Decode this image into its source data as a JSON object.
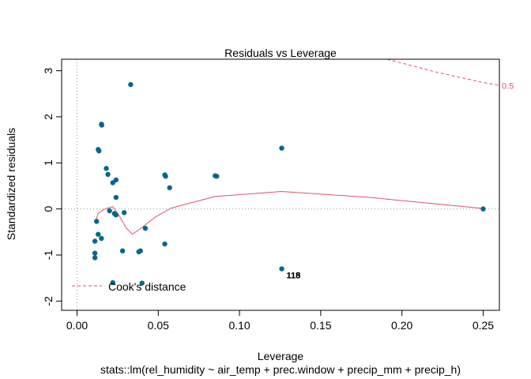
{
  "chart_data": {
    "type": "scatter",
    "title": "Residuals vs Leverage",
    "xlabel": "Leverage",
    "ylabel": "Standardized residuals",
    "subtitle": "stats::lm(rel_humidity ~ air_temp + prec.window + precip_mm + precip_h)",
    "xlim": [
      -0.0095,
      0.26
    ],
    "ylim": [
      -2.2,
      3.25
    ],
    "x_ticks": [
      0.0,
      0.05,
      0.1,
      0.15,
      0.2,
      0.25
    ],
    "x_tick_labels": [
      "0.00",
      "0.05",
      "0.10",
      "0.15",
      "0.20",
      "0.25"
    ],
    "y_ticks": [
      -2,
      -1,
      0,
      1,
      2,
      3
    ],
    "y_tick_labels": [
      "-2",
      "-1",
      "0",
      "1",
      "2",
      "3"
    ],
    "point_color": "#00688B",
    "smooth_color": "#DF536B",
    "reference_color": "#999999",
    "points": [
      {
        "x": 0.033,
        "y": 2.7
      },
      {
        "x": 0.015,
        "y": 1.84
      },
      {
        "x": 0.0152,
        "y": 1.82
      },
      {
        "x": 0.013,
        "y": 1.29
      },
      {
        "x": 0.0135,
        "y": 1.26
      },
      {
        "x": 0.126,
        "y": 1.32
      },
      {
        "x": 0.018,
        "y": 0.88
      },
      {
        "x": 0.019,
        "y": 0.75
      },
      {
        "x": 0.054,
        "y": 0.74
      },
      {
        "x": 0.0545,
        "y": 0.71
      },
      {
        "x": 0.085,
        "y": 0.72
      },
      {
        "x": 0.086,
        "y": 0.71
      },
      {
        "x": 0.024,
        "y": 0.63
      },
      {
        "x": 0.022,
        "y": 0.57
      },
      {
        "x": 0.057,
        "y": 0.46
      },
      {
        "x": 0.024,
        "y": 0.25
      },
      {
        "x": 0.02,
        "y": -0.04
      },
      {
        "x": 0.023,
        "y": -0.1
      },
      {
        "x": 0.024,
        "y": -0.13
      },
      {
        "x": 0.029,
        "y": -0.08
      },
      {
        "x": 0.012,
        "y": -0.27
      },
      {
        "x": 0.042,
        "y": -0.42
      },
      {
        "x": 0.013,
        "y": -0.55
      },
      {
        "x": 0.015,
        "y": -0.64
      },
      {
        "x": 0.011,
        "y": -0.7
      },
      {
        "x": 0.054,
        "y": -0.76
      },
      {
        "x": 0.028,
        "y": -0.91
      },
      {
        "x": 0.038,
        "y": -0.93
      },
      {
        "x": 0.039,
        "y": -0.91
      },
      {
        "x": 0.011,
        "y": -0.96
      },
      {
        "x": 0.011,
        "y": -1.06
      },
      {
        "x": 0.126,
        "y": -1.3
      },
      {
        "x": 0.022,
        "y": -1.6
      },
      {
        "x": 0.04,
        "y": -1.61
      },
      {
        "x": 0.25,
        "y": 0.0
      }
    ],
    "point_labels": [
      {
        "x": 0.126,
        "y": -1.3,
        "text": "118"
      },
      {
        "x": 0.126,
        "y": -1.3,
        "text": "115"
      }
    ],
    "smooth_line": [
      [
        0.011,
        -0.3
      ],
      [
        0.013,
        -0.1
      ],
      [
        0.016,
        -0.02
      ],
      [
        0.019,
        0.02
      ],
      [
        0.022,
        0.05
      ],
      [
        0.026,
        -0.15
      ],
      [
        0.03,
        -0.4
      ],
      [
        0.034,
        -0.55
      ],
      [
        0.04,
        -0.4
      ],
      [
        0.048,
        -0.18
      ],
      [
        0.058,
        0.02
      ],
      [
        0.085,
        0.27
      ],
      [
        0.126,
        0.38
      ],
      [
        0.18,
        0.25
      ],
      [
        0.25,
        0.01
      ]
    ],
    "cooks_contours": [
      {
        "label": "0.5",
        "points": [
          [
            0.191,
            3.25
          ],
          [
            0.205,
            3.12
          ],
          [
            0.22,
            2.98
          ],
          [
            0.235,
            2.86
          ],
          [
            0.248,
            2.76
          ],
          [
            0.26,
            2.68
          ]
        ]
      }
    ],
    "legend": {
      "label": "Cook's distance",
      "position": "bottom-left"
    }
  }
}
